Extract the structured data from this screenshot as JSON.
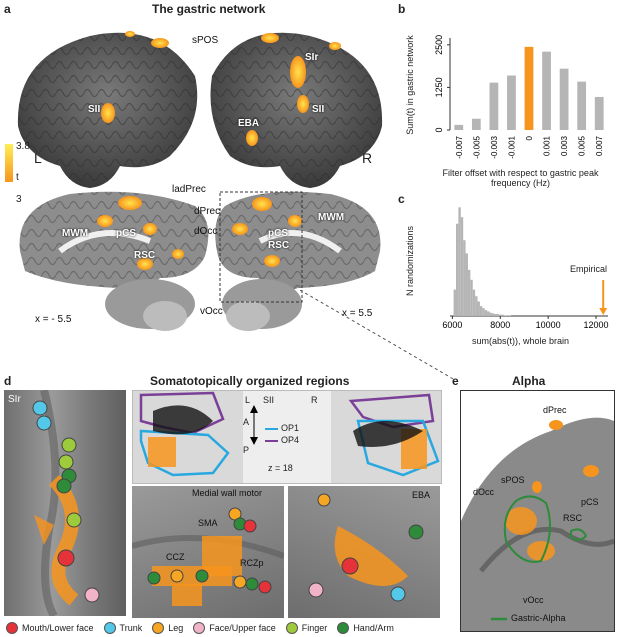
{
  "panel_a": {
    "label": "a",
    "title": "The gastric network",
    "lateral_labels": {
      "spos": "sPOS",
      "sii_left": "SII",
      "l": "L",
      "r": "R",
      "eba": "EBA",
      "slr": "SIr",
      "sii_right": "SII"
    },
    "colorbar": {
      "max": "3.8",
      "min": "3",
      "label": "t"
    },
    "medial_labels": {
      "ladprec": "ladPrec",
      "dprec": "dPrec",
      "docc": "dOcc",
      "mwm_left": "MWM",
      "pcs_left": "pCS",
      "rsc_left": "RSC",
      "pcs_right": "pCS",
      "rsc_right": "RSC",
      "mwm_right": "MWM",
      "vocc": "vOcc"
    },
    "x_left": "x = - 5.5",
    "x_right": "x = 5.5"
  },
  "panel_b": {
    "label": "b",
    "chart_data": {
      "type": "bar",
      "categories": [
        "-0.007",
        "-0.005",
        "-0.003",
        "-0.001",
        "0",
        "0.001",
        "0.003",
        "0.005",
        "0.007"
      ],
      "values": [
        150,
        330,
        1390,
        1600,
        2440,
        2300,
        1800,
        1420,
        970
      ],
      "highlight_index": 4,
      "colors": {
        "bar": "#b5b5b5",
        "highlight": "#f7941d"
      },
      "yticks": [
        "0",
        "1250",
        "2500"
      ],
      "ylim": [
        0,
        2700
      ],
      "ylabel": "Sum(t) in gastric network",
      "xlabel": "Filter offset with respect to gastric peak frequency (Hz)"
    }
  },
  "panel_c": {
    "label": "c",
    "chart_data": {
      "type": "bar",
      "x": [
        6100,
        6200,
        6300,
        6400,
        6500,
        6600,
        6700,
        6800,
        6900,
        7000,
        7100,
        7200,
        7300,
        7400,
        7500,
        7600,
        7700,
        7800,
        7900,
        8000,
        8100,
        8200,
        8300,
        8400
      ],
      "values": [
        40,
        140,
        165,
        150,
        115,
        95,
        70,
        55,
        40,
        30,
        22,
        15,
        12,
        9,
        7,
        5,
        4,
        3,
        3,
        2,
        2,
        1,
        1,
        1
      ],
      "xticks": [
        "6000",
        "8000",
        "10000",
        "12000"
      ],
      "xlim": [
        5900,
        12500
      ],
      "empirical_x": 12300,
      "empirical_label": "Empirical",
      "ylabel": "N randomizations",
      "xlabel": "sum(abs(t)), whole brain",
      "colors": {
        "bar": "#b5b5b5",
        "arrow": "#f7941d"
      }
    }
  },
  "panel_d": {
    "label": "d",
    "title": "Somatotopically organized regions",
    "slr_label": "SIr",
    "sii": {
      "label": "SII",
      "left": "L",
      "right": "R",
      "a": "A",
      "p": "P",
      "op1": "OP1",
      "op4": "OP4",
      "z": "z = 18",
      "op1_color": "#29a8e0",
      "op4_color": "#7b3f98"
    },
    "medial": {
      "title": "Medial wall motor",
      "sma": "SMA",
      "ccz": "CCZ",
      "rczp": "RCZp"
    },
    "eba_label": "EBA"
  },
  "legend": [
    {
      "label": "Mouth/Lower face",
      "color": "#e63339"
    },
    {
      "label": "Trunk",
      "color": "#53c8e8"
    },
    {
      "label": "Leg",
      "color": "#f5a623"
    },
    {
      "label": "Face/Upper face",
      "color": "#f2b3c8"
    },
    {
      "label": "Finger",
      "color": "#9ecb3c"
    },
    {
      "label": "Hand/Arm",
      "color": "#2e8b3a"
    }
  ],
  "panel_e": {
    "label": "e",
    "title": "Alpha",
    "labels": {
      "dprec": "dPrec",
      "spos": "sPOS",
      "pcs": "pCS",
      "docc": "dOcc",
      "rsc": "RSC",
      "vocc": "vOcc"
    },
    "legend": "Gastric-Alpha",
    "legend_color": "#2e8b3a"
  }
}
